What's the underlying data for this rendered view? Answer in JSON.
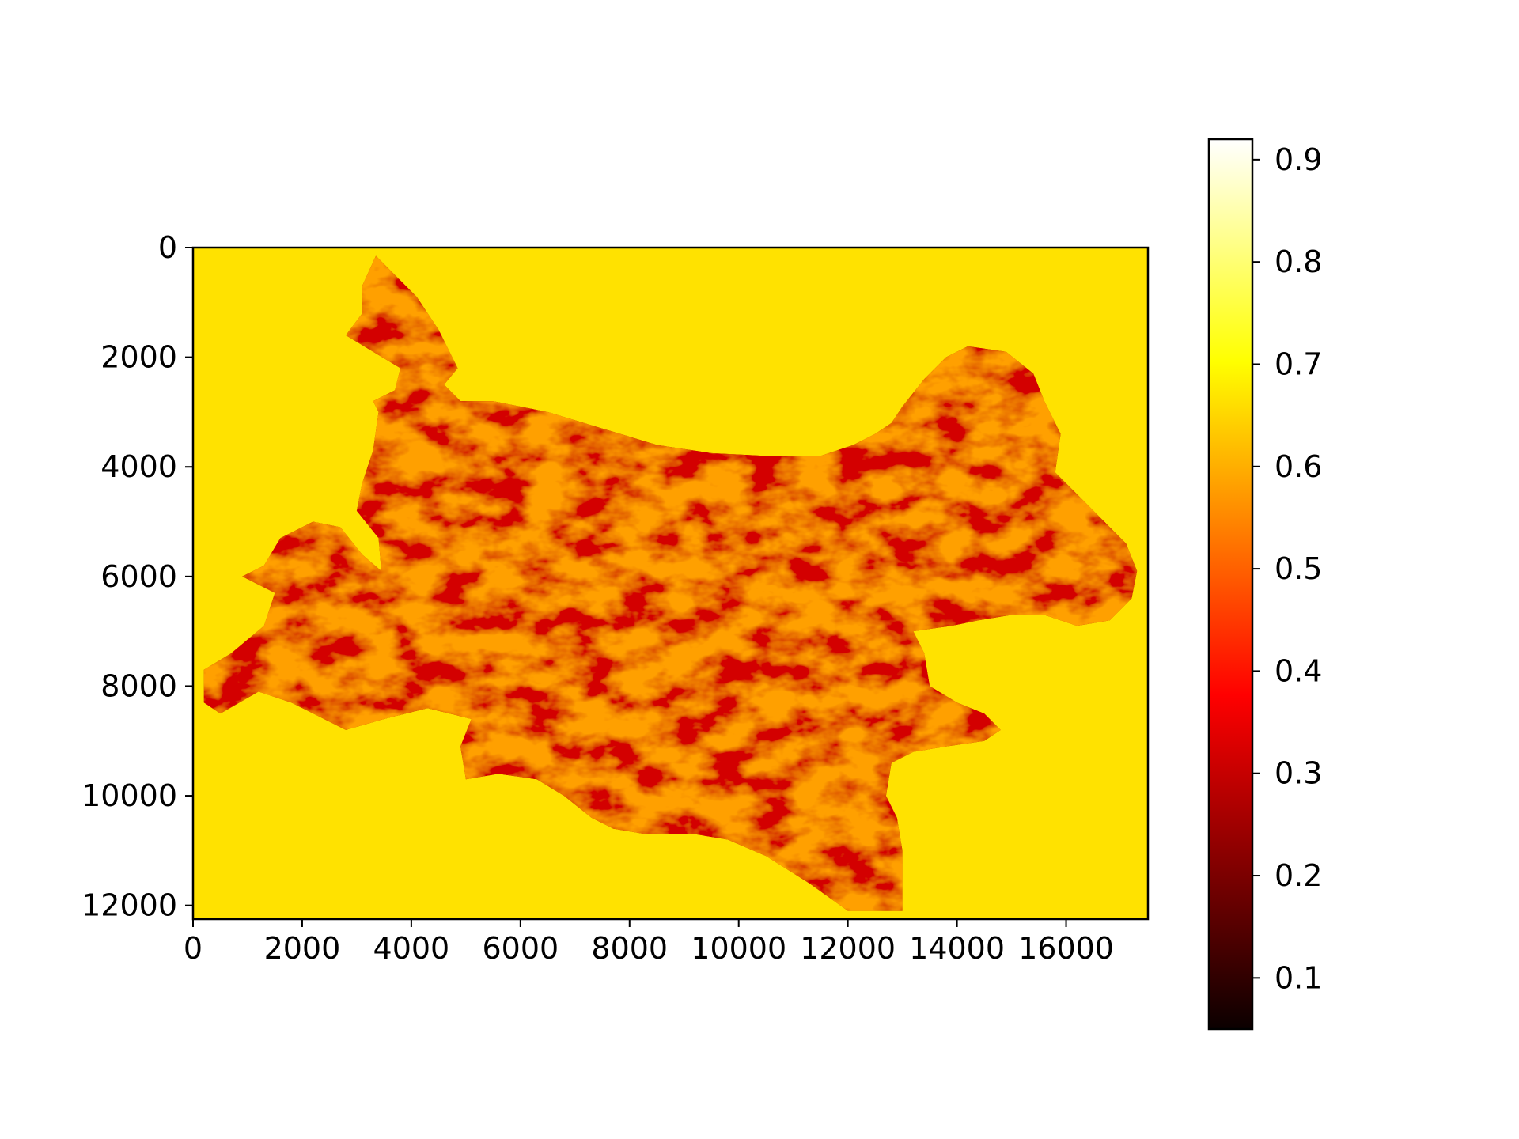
{
  "chart_data": {
    "type": "heatmap",
    "title": "",
    "xlabel": "",
    "ylabel": "",
    "xlim": [
      0,
      17500
    ],
    "ylim": [
      12250,
      0
    ],
    "x_ticks": [
      "0",
      "2000",
      "4000",
      "6000",
      "8000",
      "10000",
      "12000",
      "14000",
      "16000"
    ],
    "y_ticks": [
      "0",
      "2000",
      "4000",
      "6000",
      "8000",
      "10000",
      "12000"
    ],
    "grid": false,
    "colormap": "hot",
    "background_value": 0.66,
    "colorbar": {
      "range": [
        0.05,
        0.92
      ],
      "ticks": [
        "0.1",
        "0.2",
        "0.3",
        "0.4",
        "0.5",
        "0.6",
        "0.7",
        "0.8",
        "0.9"
      ]
    },
    "region_outline": [
      [
        3350,
        150
      ],
      [
        3700,
        500
      ],
      [
        4100,
        900
      ],
      [
        4500,
        1500
      ],
      [
        4850,
        2200
      ],
      [
        4600,
        2500
      ],
      [
        4900,
        2800
      ],
      [
        5500,
        2800
      ],
      [
        6500,
        3000
      ],
      [
        7500,
        3300
      ],
      [
        8500,
        3600
      ],
      [
        9500,
        3750
      ],
      [
        10500,
        3800
      ],
      [
        11500,
        3800
      ],
      [
        12100,
        3600
      ],
      [
        12500,
        3400
      ],
      [
        12800,
        3200
      ],
      [
        13000,
        2900
      ],
      [
        13400,
        2400
      ],
      [
        13800,
        2000
      ],
      [
        14200,
        1800
      ],
      [
        14900,
        1900
      ],
      [
        15400,
        2300
      ],
      [
        15600,
        2800
      ],
      [
        15900,
        3400
      ],
      [
        15800,
        4100
      ],
      [
        16300,
        4600
      ],
      [
        16700,
        5000
      ],
      [
        17100,
        5400
      ],
      [
        17300,
        5900
      ],
      [
        17200,
        6400
      ],
      [
        16800,
        6800
      ],
      [
        16200,
        6900
      ],
      [
        15600,
        6700
      ],
      [
        15000,
        6700
      ],
      [
        14400,
        6800
      ],
      [
        13900,
        6900
      ],
      [
        13200,
        7000
      ],
      [
        13400,
        7400
      ],
      [
        13500,
        8000
      ],
      [
        14000,
        8300
      ],
      [
        14500,
        8500
      ],
      [
        14800,
        8800
      ],
      [
        14500,
        9000
      ],
      [
        13800,
        9100
      ],
      [
        13200,
        9200
      ],
      [
        12800,
        9400
      ],
      [
        12700,
        10000
      ],
      [
        12900,
        10400
      ],
      [
        13000,
        11000
      ],
      [
        13000,
        11500
      ],
      [
        13000,
        12100
      ],
      [
        12000,
        12100
      ],
      [
        11300,
        11600
      ],
      [
        10500,
        11100
      ],
      [
        9800,
        10800
      ],
      [
        9200,
        10700
      ],
      [
        8300,
        10700
      ],
      [
        7700,
        10600
      ],
      [
        7300,
        10400
      ],
      [
        6800,
        10000
      ],
      [
        6300,
        9700
      ],
      [
        5600,
        9600
      ],
      [
        5000,
        9700
      ],
      [
        4900,
        9100
      ],
      [
        5100,
        8600
      ],
      [
        4300,
        8400
      ],
      [
        3500,
        8600
      ],
      [
        2800,
        8800
      ],
      [
        1800,
        8300
      ],
      [
        1200,
        8100
      ],
      [
        500,
        8500
      ],
      [
        200,
        8300
      ],
      [
        200,
        7700
      ],
      [
        700,
        7400
      ],
      [
        1300,
        6900
      ],
      [
        1500,
        6300
      ],
      [
        900,
        6000
      ],
      [
        1300,
        5800
      ],
      [
        1600,
        5300
      ],
      [
        2200,
        5000
      ],
      [
        2700,
        5100
      ],
      [
        3100,
        5600
      ],
      [
        3450,
        5900
      ],
      [
        3400,
        5300
      ],
      [
        3000,
        4800
      ],
      [
        3100,
        4300
      ],
      [
        3300,
        3700
      ],
      [
        3400,
        3000
      ],
      [
        3300,
        2800
      ],
      [
        3700,
        2600
      ],
      [
        3800,
        2200
      ],
      [
        2800,
        1600
      ],
      [
        3100,
        1200
      ],
      [
        3100,
        700
      ]
    ]
  }
}
